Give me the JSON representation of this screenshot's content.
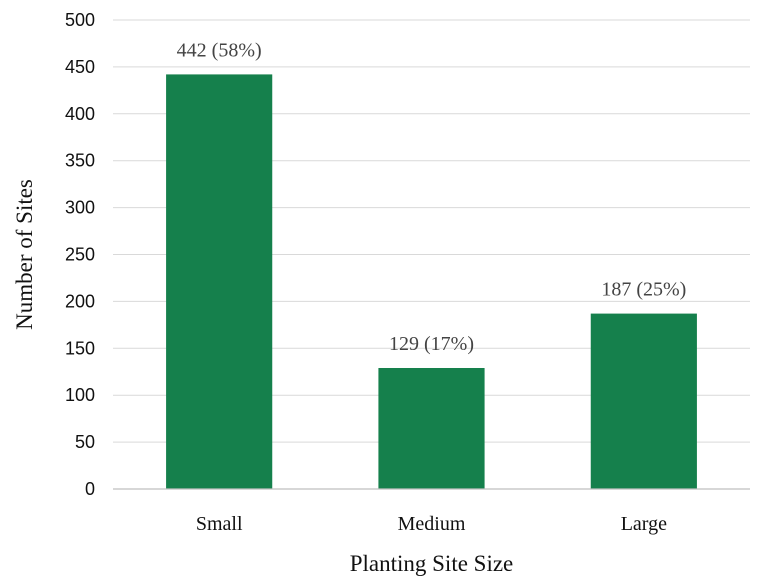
{
  "chart_data": {
    "type": "bar",
    "categories": [
      "Small",
      "Medium",
      "Large"
    ],
    "values": [
      442,
      129,
      187
    ],
    "data_labels": [
      "442 (58%)",
      "129 (17%)",
      "187 (25%)"
    ],
    "title": "",
    "xlabel": "Planting Site Size",
    "ylabel": "Number of Sites",
    "ylim": [
      0,
      500
    ],
    "yticks": [
      0,
      50,
      100,
      150,
      200,
      250,
      300,
      350,
      400,
      450,
      500
    ],
    "grid": true,
    "legend": "none",
    "bar_color": "#15804c"
  }
}
